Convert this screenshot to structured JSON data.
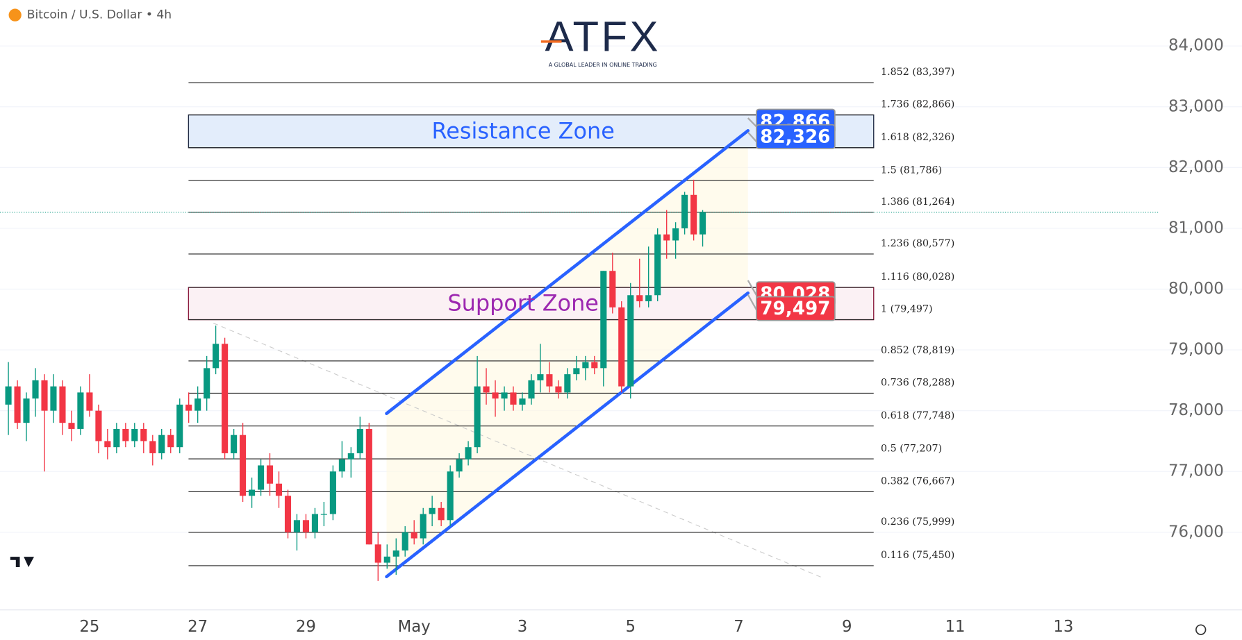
{
  "chart_data": {
    "type": "candlestick",
    "title": "Bitcoin / U.S. Dollar • 4h",
    "logo": {
      "brand": "ATFX",
      "tagline": "A GLOBAL LEADER IN ONLINE TRADING"
    },
    "up_color": "#089981",
    "down_color": "#f23645",
    "grid": true,
    "xlim": [
      23.345,
      44.75
    ],
    "ylim": [
      74723,
      84756
    ],
    "xticks": [
      25,
      27,
      29,
      {
        "value": 31,
        "label": "May"
      },
      {
        "value": 33,
        "label": "3"
      },
      {
        "value": 35,
        "label": "5"
      },
      {
        "value": 37,
        "label": "7"
      },
      {
        "value": 39,
        "label": "9"
      },
      {
        "value": 41,
        "label": "11"
      },
      {
        "value": 43,
        "label": "13"
      }
    ],
    "yticks": [
      {
        "value": 76000,
        "label": "76,000"
      },
      {
        "value": 77000,
        "label": "77,000"
      },
      {
        "value": 78000,
        "label": "78,000"
      },
      {
        "value": 79000,
        "label": "79,000"
      },
      {
        "value": 80000,
        "label": "80,000"
      },
      {
        "value": 81000,
        "label": "81,000"
      },
      {
        "value": 82000,
        "label": "82,000"
      },
      {
        "value": 83000,
        "label": "83,000"
      },
      {
        "value": 84000,
        "label": "84,000"
      }
    ],
    "candles": {
      "x": [
        23.5,
        23.667,
        23.833,
        24,
        24.167,
        24.333,
        24.5,
        24.667,
        24.833,
        25,
        25.167,
        25.333,
        25.5,
        25.667,
        25.833,
        26,
        26.167,
        26.333,
        26.5,
        26.667,
        26.833,
        27,
        27.167,
        27.333,
        27.5,
        27.667,
        27.833,
        28,
        28.167,
        28.333,
        28.5,
        28.667,
        28.833,
        29,
        29.167,
        29.333,
        29.5,
        29.667,
        29.833,
        30,
        30.167,
        30.333,
        30.5,
        30.667,
        30.833,
        31,
        31.167,
        31.333,
        31.5,
        31.667,
        31.833,
        32,
        32.167,
        32.333,
        32.5,
        32.667,
        32.833,
        33,
        33.167,
        33.333,
        33.5,
        33.667,
        33.833,
        34,
        34.167,
        34.333,
        34.5,
        34.667,
        34.833,
        35,
        35.167,
        35.333,
        35.5,
        35.667,
        35.833,
        36,
        36.167,
        36.333
      ],
      "open": [
        78100,
        78400,
        77800,
        78200,
        78500,
        78000,
        78400,
        77800,
        77700,
        78300,
        78000,
        77500,
        77400,
        77700,
        77500,
        77700,
        77500,
        77300,
        77600,
        77400,
        78100,
        78000,
        78200,
        78700,
        79100,
        77300,
        77600,
        76600,
        76700,
        77100,
        76800,
        76600,
        76000,
        76200,
        76000,
        76300,
        76300,
        77000,
        77200,
        77300,
        77700,
        75800,
        75500,
        75600,
        75700,
        76000,
        75900,
        76300,
        76400,
        76200,
        77000,
        77200,
        77400,
        78400,
        78300,
        78200,
        78300,
        78100,
        78200,
        78500,
        78600,
        78400,
        78300,
        78600,
        78700,
        78800,
        78700,
        80300,
        79700,
        78400,
        79900,
        79800,
        79900,
        80900,
        80800,
        81000,
        81550,
        80900
      ],
      "high": [
        78800,
        78500,
        78300,
        78700,
        78600,
        78600,
        78500,
        78000,
        78400,
        78600,
        78100,
        77700,
        77800,
        77800,
        77800,
        77800,
        77600,
        77700,
        77700,
        78200,
        78300,
        78400,
        78900,
        79400,
        79200,
        77700,
        77800,
        76900,
        77200,
        77300,
        77000,
        76700,
        76300,
        76300,
        76400,
        76500,
        77100,
        77500,
        77400,
        77900,
        77800,
        76000,
        75800,
        75900,
        76100,
        76200,
        76400,
        76600,
        76500,
        77100,
        77300,
        77500,
        78900,
        78700,
        78500,
        78400,
        78400,
        78300,
        78600,
        79100,
        78800,
        78500,
        78700,
        78900,
        78900,
        78900,
        80300,
        80600,
        79800,
        80100,
        80500,
        80700,
        81000,
        81300,
        81100,
        81600,
        81800,
        81300
      ],
      "low": [
        77600,
        77700,
        77500,
        77900,
        77000,
        77800,
        77600,
        77500,
        77600,
        77900,
        77300,
        77200,
        77300,
        77400,
        77400,
        77300,
        77100,
        77200,
        77300,
        77300,
        77800,
        77800,
        78000,
        78600,
        77200,
        77200,
        76500,
        76400,
        76600,
        76600,
        76400,
        75900,
        75700,
        75900,
        75900,
        76100,
        76200,
        76900,
        76900,
        77200,
        75800,
        75200,
        75400,
        75300,
        75600,
        75800,
        75800,
        76100,
        76100,
        76100,
        76900,
        77100,
        77300,
        78100,
        77900,
        78000,
        78000,
        78000,
        78100,
        78300,
        78300,
        78200,
        78200,
        78500,
        78500,
        78600,
        78400,
        79600,
        78300,
        78200,
        79700,
        79700,
        79800,
        80500,
        80500,
        80900,
        80800,
        80700
      ],
      "close": [
        78400,
        77800,
        78200,
        78500,
        78000,
        78400,
        77800,
        77700,
        78300,
        78000,
        77500,
        77400,
        77700,
        77500,
        77700,
        77500,
        77300,
        77600,
        77400,
        78100,
        78000,
        78200,
        78700,
        79100,
        77300,
        77600,
        76600,
        76700,
        77100,
        76800,
        76600,
        76000,
        76200,
        76000,
        76300,
        76300,
        77000,
        77200,
        77300,
        77700,
        75800,
        75500,
        75600,
        75700,
        76000,
        75900,
        76300,
        76400,
        76200,
        77000,
        77200,
        77400,
        78400,
        78300,
        78200,
        78300,
        78100,
        78200,
        78500,
        78600,
        78400,
        78300,
        78600,
        78700,
        78800,
        78700,
        80300,
        79700,
        78400,
        79900,
        79800,
        79900,
        80900,
        80800,
        81000,
        81550,
        80900,
        81264
      ]
    },
    "current_price": 81264,
    "fib_levels": [
      {
        "value": 83397,
        "label": "1.852 (83,397)"
      },
      {
        "value": 82866,
        "label": "1.736 (82,866)"
      },
      {
        "value": 82326,
        "label": "1.618 (82,326)"
      },
      {
        "value": 81786,
        "label": "1.5 (81,786)"
      },
      {
        "value": 81264,
        "label": "1.386 (81,264)"
      },
      {
        "value": 80577,
        "label": "1.236 (80,577)"
      },
      {
        "value": 80028,
        "label": "1.116 (80,028)"
      },
      {
        "value": 79497,
        "label": "1 (79,497)"
      },
      {
        "value": 78819,
        "label": "0.852 (78,819)"
      },
      {
        "value": 78288,
        "label": "0.736 (78,288)"
      },
      {
        "value": 77748,
        "label": "0.618 (77,748)"
      },
      {
        "value": 77207,
        "label": "0.5 (77,207)"
      },
      {
        "value": 76667,
        "label": "0.382 (76,667)"
      },
      {
        "value": 75999,
        "label": "0.236 (75,999)"
      },
      {
        "value": 75450,
        "label": "0.116 (75,450)"
      }
    ],
    "zones": [
      {
        "label": "Resistance Zone",
        "range": [
          82326,
          82866
        ],
        "color": "#2962ff"
      },
      {
        "label": "Support Zone",
        "range": [
          79497,
          80028
        ],
        "color": "#9c27b0"
      }
    ],
    "price_tags": [
      {
        "value": 82866,
        "label": "82,866",
        "color": "#2962ff"
      },
      {
        "value": 82326,
        "label": "82,326",
        "color": "#2962ff"
      },
      {
        "value": 80028,
        "label": "80,028",
        "color": "#f23645"
      },
      {
        "value": 79497,
        "label": "79,497",
        "color": "#f23645"
      }
    ],
    "channel": {
      "upper": {
        "x": [
          30.49,
          37.17
        ],
        "y": [
          77954,
          82606
        ]
      },
      "lower": {
        "x": [
          30.49,
          37.17
        ],
        "y": [
          75270,
          79935
        ]
      },
      "color": "#2962ff"
    },
    "dashed_trend": {
      "x": [
        27.29,
        38.57
      ],
      "y": [
        79440,
        75244
      ]
    }
  }
}
